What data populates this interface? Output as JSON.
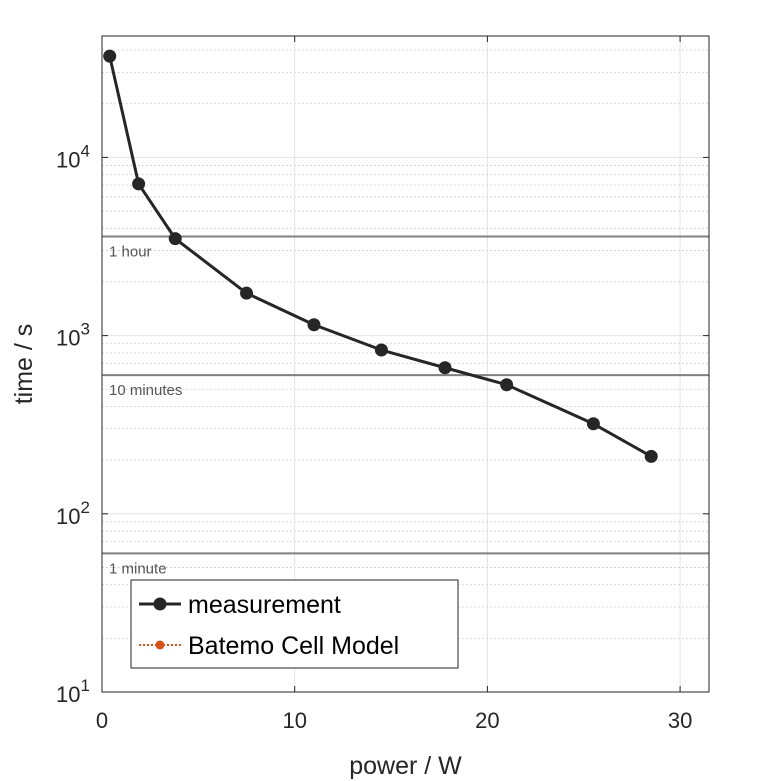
{
  "chart_data": {
    "type": "line",
    "title": "",
    "xlabel": "power / W",
    "ylabel": "time / s",
    "xlim": [
      0,
      31.5
    ],
    "ylim": [
      10,
      48000
    ],
    "yscale": "log",
    "xticks": [
      0,
      10,
      20,
      30
    ],
    "yticks": [
      {
        "value": 10,
        "base": "10",
        "exp": "1"
      },
      {
        "value": 100,
        "base": "10",
        "exp": "2"
      },
      {
        "value": 1000,
        "base": "10",
        "exp": "3"
      },
      {
        "value": 10000,
        "base": "10",
        "exp": "4"
      }
    ],
    "grid": true,
    "reference_lines": [
      {
        "y": 3600,
        "label": "1 hour"
      },
      {
        "y": 600,
        "label": "10 minutes"
      },
      {
        "y": 60,
        "label": "1 minute"
      }
    ],
    "series": [
      {
        "name": "measurement",
        "color": "#262626",
        "style": "solid",
        "x": [
          0.4,
          1.9,
          3.8,
          7.5,
          11.0,
          14.5,
          17.8,
          21.0,
          25.5,
          28.5
        ],
        "y": [
          37000,
          7100,
          3500,
          1730,
          1150,
          830,
          660,
          530,
          320,
          210
        ]
      },
      {
        "name": "Batemo Cell Model",
        "color": "#d95319",
        "style": "dotted",
        "x": [],
        "y": []
      }
    ],
    "legend_position": "bottom-left"
  }
}
